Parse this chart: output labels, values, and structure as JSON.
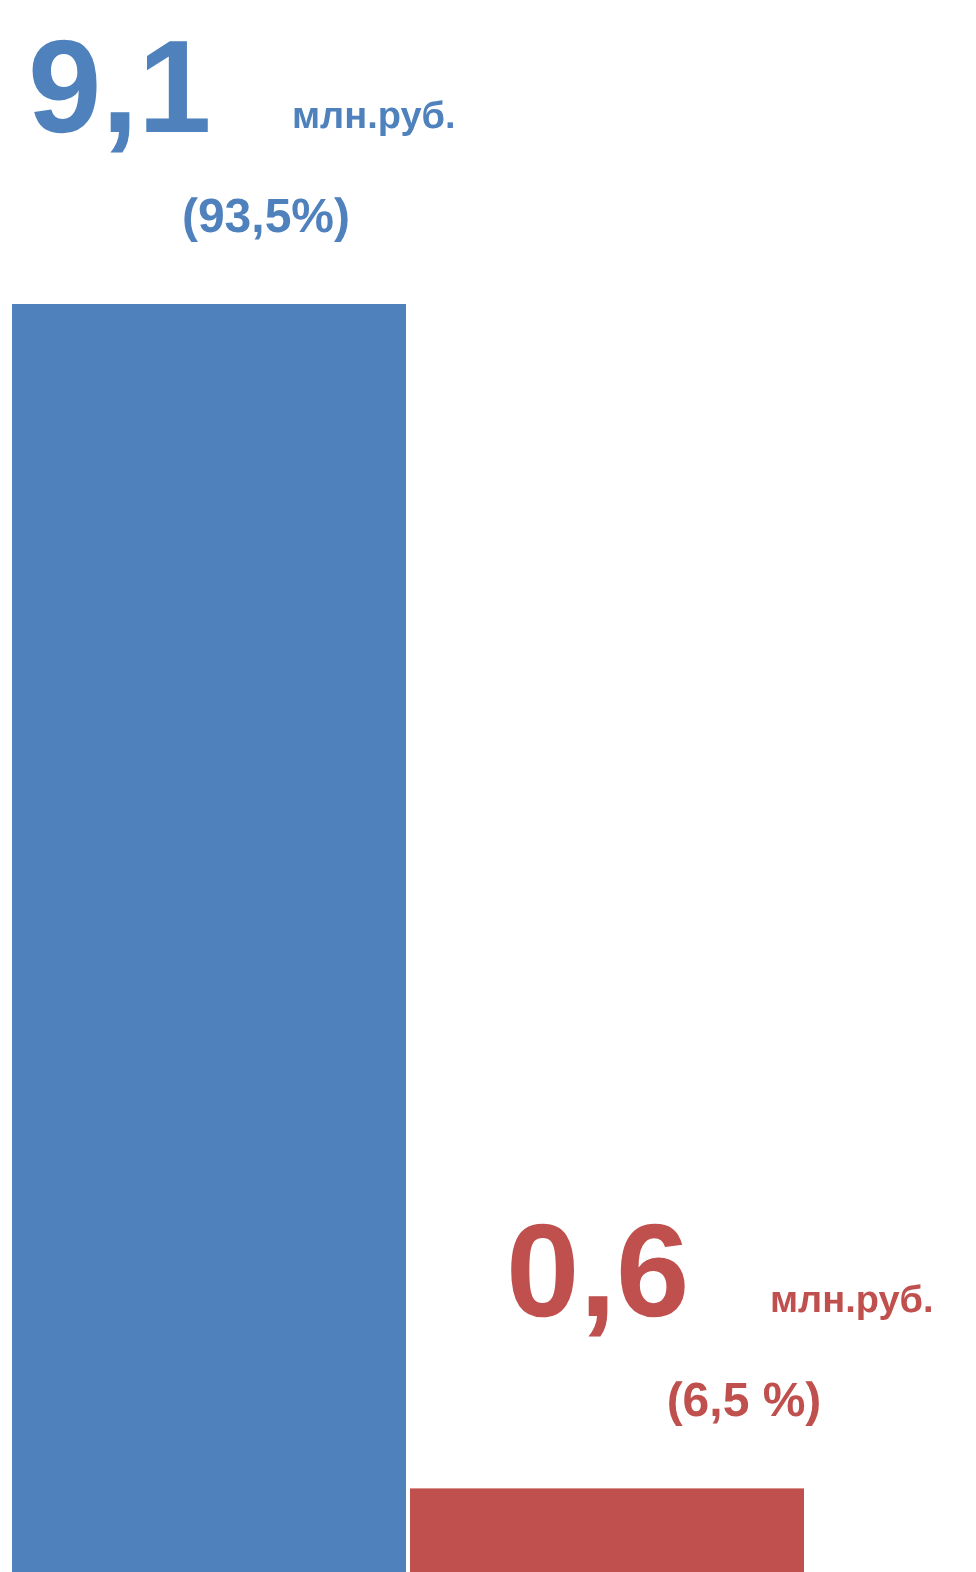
{
  "chart_data": {
    "type": "bar",
    "categories": [
      null,
      null
    ],
    "values": [
      9.1,
      0.6
    ],
    "colors": [
      "#4f81bd",
      "#c0504d"
    ],
    "value_labels": [
      "9,1",
      "0,6"
    ],
    "annotations": [
      "млн.руб.",
      "(93,5%)",
      "млн.руб.",
      "(6,5 %)"
    ]
  }
}
